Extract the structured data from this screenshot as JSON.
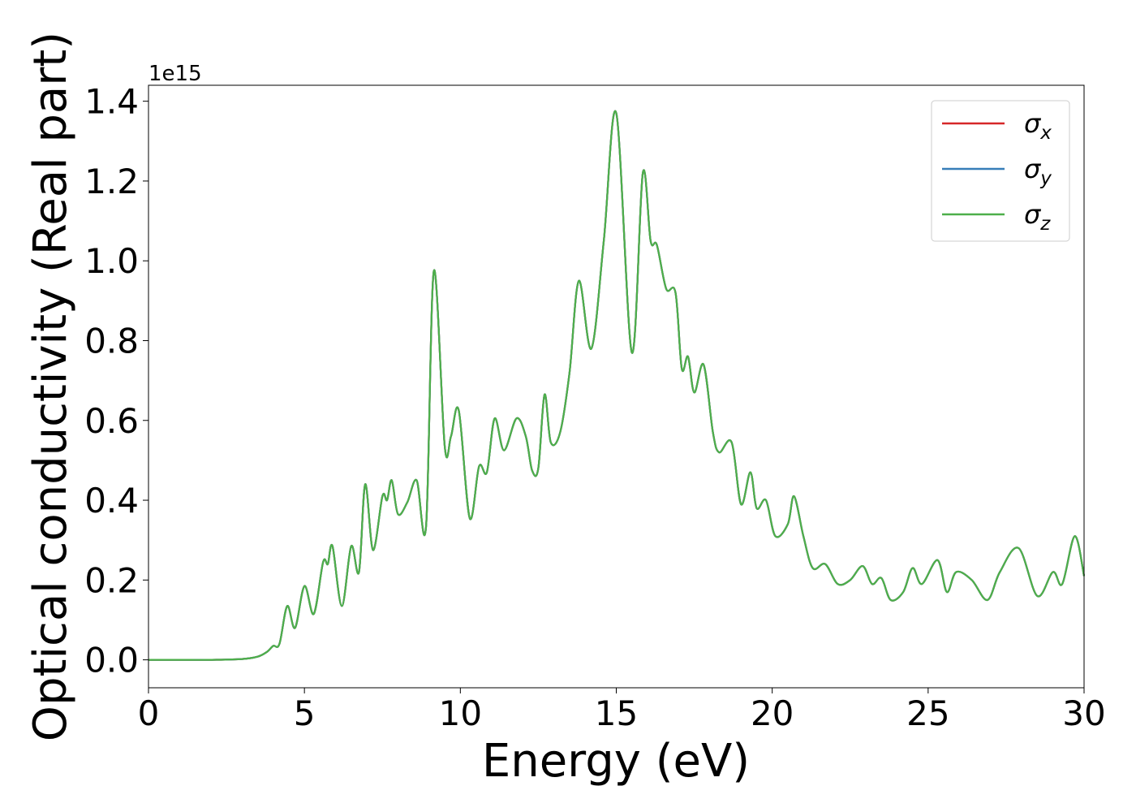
{
  "chart_data": {
    "type": "line",
    "xlabel": "Energy (eV)",
    "ylabel": "Optical conductivity (Real part)",
    "offset_text": "1e15",
    "xlim": [
      0,
      30
    ],
    "ylim": [
      -0.07,
      1.44
    ],
    "xticks": [
      0,
      5,
      10,
      15,
      20,
      25,
      30
    ],
    "xtick_labels": [
      "0",
      "5",
      "10",
      "15",
      "20",
      "25",
      "30"
    ],
    "yticks": [
      0.0,
      0.2,
      0.4,
      0.6,
      0.8,
      1.0,
      1.2,
      1.4
    ],
    "ytick_labels": [
      "0.0",
      "0.2",
      "0.4",
      "0.6",
      "0.8",
      "1.0",
      "1.2",
      "1.4"
    ],
    "grid": false,
    "legend_position": "top-right",
    "x": [
      0,
      1,
      2,
      3,
      3.5,
      3.8,
      4.0,
      4.2,
      4.45,
      4.7,
      5.0,
      5.3,
      5.6,
      5.75,
      5.9,
      6.2,
      6.5,
      6.75,
      6.95,
      7.2,
      7.5,
      7.65,
      7.8,
      8.0,
      8.3,
      8.6,
      8.9,
      9.15,
      9.5,
      9.7,
      9.95,
      10.3,
      10.6,
      10.85,
      11.1,
      11.4,
      11.8,
      12.1,
      12.3,
      12.5,
      12.7,
      12.9,
      13.2,
      13.5,
      13.8,
      14.2,
      14.6,
      15.0,
      15.5,
      15.85,
      16.1,
      16.3,
      16.6,
      16.9,
      17.1,
      17.3,
      17.5,
      17.8,
      18.1,
      18.3,
      18.7,
      19.0,
      19.3,
      19.5,
      19.8,
      20.1,
      20.5,
      20.7,
      21.0,
      21.3,
      21.7,
      22.1,
      22.5,
      22.9,
      23.2,
      23.5,
      23.8,
      24.2,
      24.5,
      24.8,
      25.3,
      25.6,
      25.9,
      26.4,
      26.9,
      27.3,
      27.9,
      28.5,
      29.0,
      29.3,
      29.7,
      30.0
    ],
    "series": [
      {
        "name": "σx",
        "color": "#d62728",
        "values": [
          0,
          0,
          0,
          0.002,
          0.008,
          0.02,
          0.035,
          0.04,
          0.135,
          0.08,
          0.185,
          0.115,
          0.245,
          0.24,
          0.285,
          0.135,
          0.285,
          0.22,
          0.44,
          0.275,
          0.41,
          0.4,
          0.45,
          0.365,
          0.395,
          0.45,
          0.335,
          0.975,
          0.535,
          0.56,
          0.625,
          0.355,
          0.485,
          0.47,
          0.605,
          0.525,
          0.605,
          0.56,
          0.475,
          0.48,
          0.665,
          0.545,
          0.57,
          0.72,
          0.95,
          0.78,
          1.05,
          1.37,
          0.77,
          1.22,
          1.05,
          1.04,
          0.93,
          0.92,
          0.73,
          0.76,
          0.67,
          0.74,
          0.57,
          0.52,
          0.545,
          0.39,
          0.47,
          0.38,
          0.4,
          0.31,
          0.34,
          0.41,
          0.31,
          0.23,
          0.24,
          0.19,
          0.2,
          0.235,
          0.19,
          0.205,
          0.15,
          0.17,
          0.23,
          0.19,
          0.25,
          0.17,
          0.22,
          0.2,
          0.15,
          0.22,
          0.28,
          0.16,
          0.22,
          0.19,
          0.31,
          0.21
        ]
      },
      {
        "name": "σy",
        "color": "#377eb8",
        "values": [
          0,
          0,
          0,
          0.002,
          0.008,
          0.02,
          0.035,
          0.04,
          0.135,
          0.08,
          0.185,
          0.115,
          0.245,
          0.24,
          0.285,
          0.135,
          0.285,
          0.22,
          0.44,
          0.275,
          0.41,
          0.4,
          0.45,
          0.365,
          0.395,
          0.45,
          0.335,
          0.975,
          0.535,
          0.56,
          0.625,
          0.355,
          0.485,
          0.47,
          0.605,
          0.525,
          0.605,
          0.56,
          0.475,
          0.48,
          0.665,
          0.545,
          0.57,
          0.72,
          0.95,
          0.78,
          1.05,
          1.37,
          0.77,
          1.22,
          1.05,
          1.04,
          0.93,
          0.92,
          0.73,
          0.76,
          0.67,
          0.74,
          0.57,
          0.52,
          0.545,
          0.39,
          0.47,
          0.38,
          0.4,
          0.31,
          0.34,
          0.41,
          0.31,
          0.23,
          0.24,
          0.19,
          0.2,
          0.235,
          0.19,
          0.205,
          0.15,
          0.17,
          0.23,
          0.19,
          0.25,
          0.17,
          0.22,
          0.2,
          0.15,
          0.22,
          0.28,
          0.16,
          0.22,
          0.19,
          0.31,
          0.21
        ]
      },
      {
        "name": "σz",
        "color": "#4daf4a",
        "values": [
          0,
          0,
          0,
          0.002,
          0.008,
          0.02,
          0.035,
          0.04,
          0.135,
          0.08,
          0.185,
          0.115,
          0.245,
          0.24,
          0.285,
          0.135,
          0.285,
          0.22,
          0.44,
          0.275,
          0.41,
          0.4,
          0.45,
          0.365,
          0.395,
          0.45,
          0.335,
          0.975,
          0.535,
          0.56,
          0.625,
          0.355,
          0.485,
          0.47,
          0.605,
          0.525,
          0.605,
          0.56,
          0.475,
          0.48,
          0.665,
          0.545,
          0.57,
          0.72,
          0.95,
          0.78,
          1.05,
          1.37,
          0.77,
          1.22,
          1.05,
          1.04,
          0.93,
          0.92,
          0.73,
          0.76,
          0.67,
          0.74,
          0.57,
          0.52,
          0.545,
          0.39,
          0.47,
          0.38,
          0.4,
          0.31,
          0.34,
          0.41,
          0.31,
          0.23,
          0.24,
          0.19,
          0.2,
          0.235,
          0.19,
          0.205,
          0.15,
          0.17,
          0.23,
          0.19,
          0.25,
          0.17,
          0.22,
          0.2,
          0.15,
          0.22,
          0.28,
          0.16,
          0.22,
          0.19,
          0.31,
          0.21
        ]
      }
    ],
    "legend": [
      {
        "symbol": "σ",
        "sub": "x",
        "color": "#d62728"
      },
      {
        "symbol": "σ",
        "sub": "y",
        "color": "#377eb8"
      },
      {
        "symbol": "σ",
        "sub": "z",
        "color": "#4daf4a"
      }
    ]
  }
}
